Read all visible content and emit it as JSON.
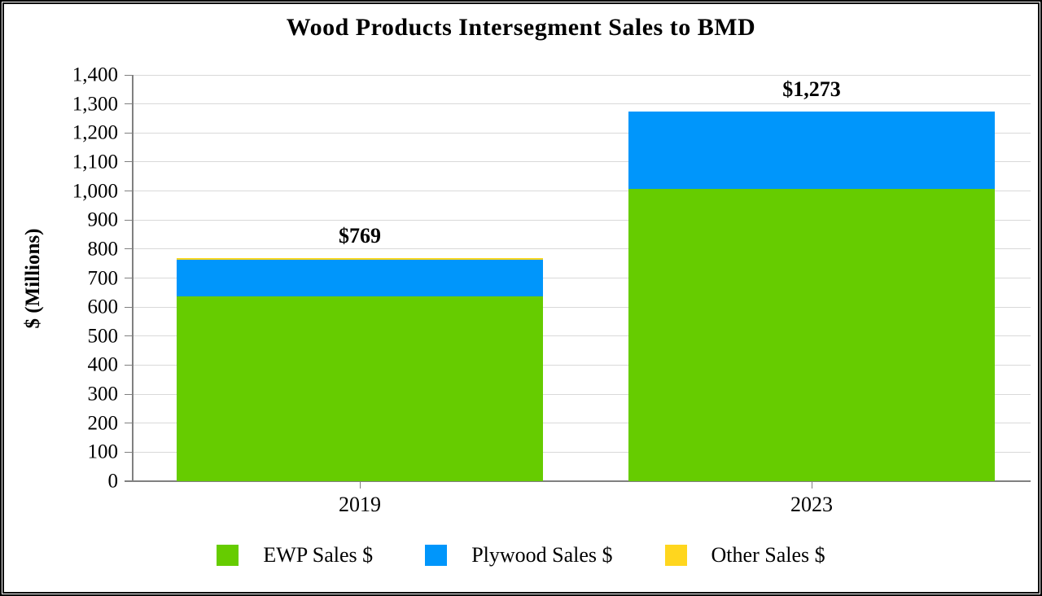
{
  "title": "Wood Products Intersegment Sales to BMD",
  "chart_data": {
    "type": "bar",
    "stacked": true,
    "title": "Wood Products Intersegment Sales to BMD",
    "categories": [
      "2019",
      "2023"
    ],
    "series": [
      {
        "name": "EWP Sales $",
        "color": "#66CC00",
        "values": [
          637,
          1007
        ]
      },
      {
        "name": "Plywood Sales $",
        "color": "#0096FB",
        "values": [
          127,
          266
        ]
      },
      {
        "name": "Other Sales $",
        "color": "#FFD61E",
        "values": [
          5,
          0
        ]
      }
    ],
    "totals": [
      769,
      1273
    ],
    "total_labels": [
      "$769",
      "$1,273"
    ],
    "xlabel": "",
    "ylabel": "$ (Millions)",
    "ylim": [
      0,
      1400
    ],
    "ytick_interval": 100,
    "ytick_labels": [
      "0",
      "100",
      "200",
      "300",
      "400",
      "500",
      "600",
      "700",
      "800",
      "900",
      "1,000",
      "1,100",
      "1,200",
      "1,300",
      "1,400"
    ],
    "grid": true,
    "legend_position": "bottom"
  },
  "colors": {
    "ewp": "#66CC00",
    "plywood": "#0096FB",
    "other": "#FFD61E",
    "gridline": "#D9D9D9",
    "axis": "#808080",
    "text": "#000000",
    "background": "#FFFFFF"
  }
}
